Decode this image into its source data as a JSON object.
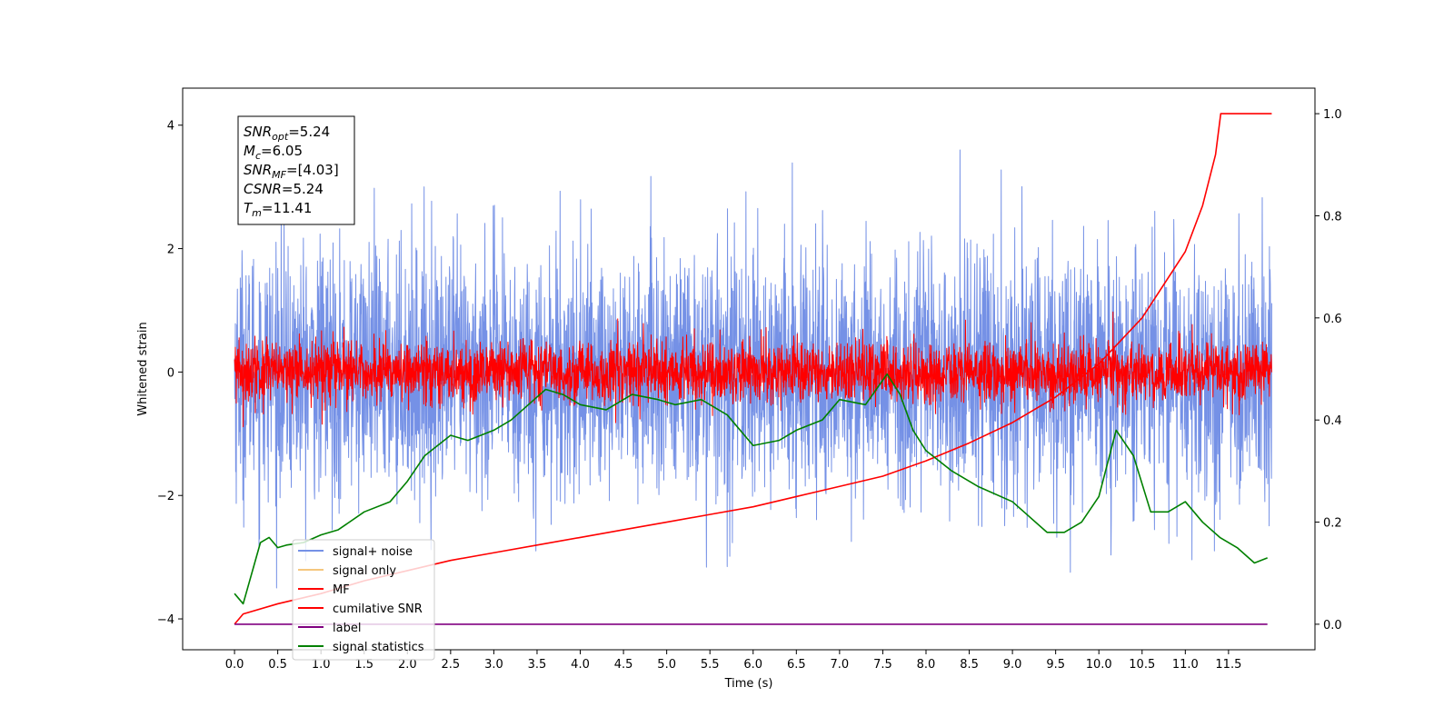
{
  "chart_data": {
    "type": "line",
    "title": "",
    "xlabel": "Time (s)",
    "ylabel": "Whitened strain",
    "ylabel_right": "",
    "xlim": [
      -0.6,
      12.5
    ],
    "ylim": [
      -4.5,
      4.6
    ],
    "y2lim": [
      -0.05,
      1.05
    ],
    "x_ticks": [
      "0.0",
      "0.5",
      "1.0",
      "1.5",
      "2.0",
      "2.5",
      "3.0",
      "3.5",
      "4.0",
      "4.5",
      "5.0",
      "5.5",
      "6.0",
      "6.5",
      "7.0",
      "7.5",
      "8.0",
      "8.5",
      "9.0",
      "9.5",
      "10.0",
      "10.5",
      "11.0",
      "11.5"
    ],
    "y_ticks": [
      "4",
      "2",
      "0",
      "−2",
      "−4"
    ],
    "y2_ticks": [
      "1.0",
      "0.8",
      "0.6",
      "0.4",
      "0.2",
      "0.0"
    ],
    "grid": false,
    "legend_position": "lower-left",
    "annotation": {
      "lines": [
        {
          "sym": "SNR",
          "sub": "opt",
          "value": "=5.24"
        },
        {
          "sym": "M",
          "sub": "c",
          "value": "=6.05"
        },
        {
          "sym": "SNR",
          "sub": "MF",
          "value": "=[4.03]"
        },
        {
          "sym": "CSNR",
          "sub": "",
          "value": "=5.24"
        },
        {
          "sym": "T",
          "sub": "m",
          "value": "=11.41"
        }
      ]
    },
    "series": [
      {
        "name": "signal+ noise",
        "color": "#7591e6",
        "axis": "left",
        "style": "noise",
        "x_range": [
          0.0,
          12.0
        ],
        "center": 0.0,
        "std": 1.0
      },
      {
        "name": "signal only",
        "color": "#f5c77e",
        "axis": "left",
        "style": "hidden"
      },
      {
        "name": "MF",
        "color": "#ff0000",
        "axis": "left",
        "style": "noise",
        "x_range": [
          0.0,
          12.0
        ],
        "center": 0.0,
        "std": 0.25
      },
      {
        "name": "cumilative SNR",
        "color": "#ff0000",
        "axis": "right",
        "style": "line",
        "x": [
          0.0,
          0.1,
          0.5,
          1.0,
          1.5,
          2.0,
          2.5,
          3.0,
          3.5,
          4.0,
          4.5,
          5.0,
          5.5,
          6.0,
          6.5,
          7.0,
          7.5,
          8.0,
          8.5,
          9.0,
          9.5,
          10.0,
          10.5,
          11.0,
          11.2,
          11.35,
          11.41,
          12.0
        ],
        "y": [
          0.0,
          0.02,
          0.04,
          0.06,
          0.085,
          0.105,
          0.125,
          0.14,
          0.155,
          0.17,
          0.185,
          0.2,
          0.215,
          0.23,
          0.25,
          0.27,
          0.29,
          0.32,
          0.355,
          0.395,
          0.445,
          0.51,
          0.6,
          0.73,
          0.82,
          0.92,
          1.0,
          1.0
        ]
      },
      {
        "name": "label",
        "color": "#800080",
        "axis": "right",
        "style": "line",
        "x": [
          0.0,
          11.95
        ],
        "y": [
          0.0,
          0.0
        ]
      },
      {
        "name": "signal statistics",
        "color": "#008000",
        "axis": "right",
        "style": "line",
        "x": [
          0.0,
          0.1,
          0.2,
          0.3,
          0.4,
          0.5,
          0.6,
          0.8,
          1.0,
          1.2,
          1.5,
          1.8,
          2.0,
          2.2,
          2.5,
          2.7,
          3.0,
          3.2,
          3.4,
          3.6,
          3.8,
          4.0,
          4.3,
          4.6,
          4.9,
          5.1,
          5.4,
          5.7,
          6.0,
          6.3,
          6.5,
          6.8,
          7.0,
          7.3,
          7.55,
          7.7,
          7.85,
          8.0,
          8.3,
          8.6,
          9.0,
          9.4,
          9.6,
          9.8,
          10.0,
          10.2,
          10.4,
          10.6,
          10.8,
          11.0,
          11.2,
          11.4,
          11.6,
          11.8,
          11.95
        ],
        "y": [
          0.06,
          0.04,
          0.1,
          0.16,
          0.17,
          0.15,
          0.155,
          0.16,
          0.175,
          0.185,
          0.22,
          0.24,
          0.28,
          0.33,
          0.37,
          0.36,
          0.38,
          0.4,
          0.43,
          0.46,
          0.45,
          0.43,
          0.42,
          0.45,
          0.44,
          0.43,
          0.44,
          0.41,
          0.35,
          0.36,
          0.38,
          0.4,
          0.44,
          0.43,
          0.49,
          0.45,
          0.38,
          0.34,
          0.3,
          0.27,
          0.24,
          0.18,
          0.18,
          0.2,
          0.25,
          0.38,
          0.33,
          0.22,
          0.22,
          0.24,
          0.2,
          0.17,
          0.15,
          0.12,
          0.13
        ]
      }
    ]
  }
}
